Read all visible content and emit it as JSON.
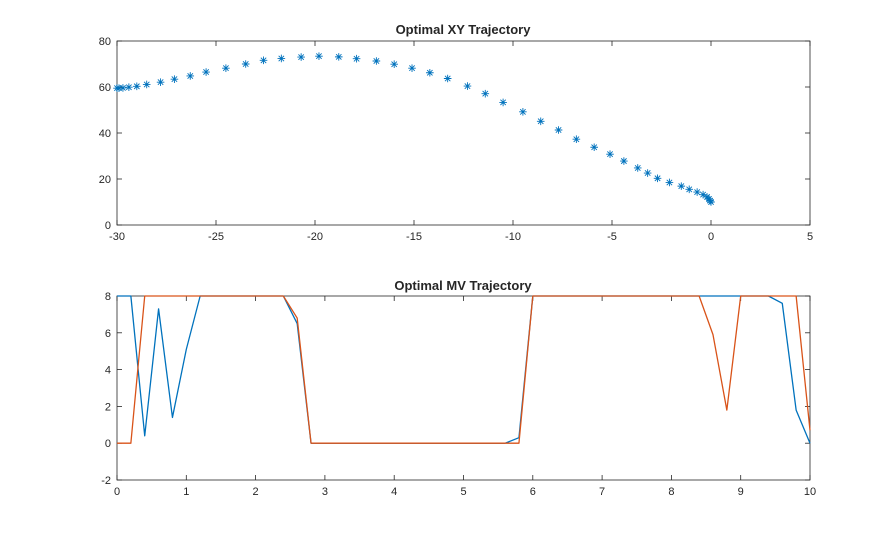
{
  "chart_data": [
    {
      "type": "scatter",
      "title": "Optimal XY Trajectory",
      "xlabel": "",
      "ylabel": "",
      "xlim": [
        -30,
        5
      ],
      "ylim": [
        0,
        80
      ],
      "xticks": [
        "-30",
        "-25",
        "-20",
        "-15",
        "-10",
        "-5",
        "0",
        "5"
      ],
      "yticks": [
        "0",
        "20",
        "40",
        "60",
        "80"
      ],
      "marker": "asterisk",
      "grid": false,
      "color": "#0072BD",
      "points": [
        [
          0.0,
          10.0
        ],
        [
          -0.05,
          10.6
        ],
        [
          -0.1,
          11.3
        ],
        [
          -0.2,
          12.2
        ],
        [
          -0.4,
          13.2
        ],
        [
          -0.7,
          14.3
        ],
        [
          -1.1,
          15.5
        ],
        [
          -1.5,
          16.9
        ],
        [
          -2.1,
          18.5
        ],
        [
          -2.7,
          20.3
        ],
        [
          -3.2,
          22.6
        ],
        [
          -3.7,
          24.8
        ],
        [
          -4.4,
          27.8
        ],
        [
          -5.1,
          30.8
        ],
        [
          -5.9,
          33.8
        ],
        [
          -6.8,
          37.3
        ],
        [
          -7.7,
          41.3
        ],
        [
          -8.6,
          45.1
        ],
        [
          -9.5,
          49.2
        ],
        [
          -10.5,
          53.3
        ],
        [
          -11.4,
          57.1
        ],
        [
          -12.3,
          60.4
        ],
        [
          -13.3,
          63.7
        ],
        [
          -14.2,
          66.2
        ],
        [
          -15.1,
          68.2
        ],
        [
          -16.0,
          69.9
        ],
        [
          -16.9,
          71.3
        ],
        [
          -17.9,
          72.3
        ],
        [
          -18.8,
          73.1
        ],
        [
          -19.8,
          73.4
        ],
        [
          -20.7,
          73.0
        ],
        [
          -21.7,
          72.4
        ],
        [
          -22.6,
          71.6
        ],
        [
          -23.5,
          70.0
        ],
        [
          -24.5,
          68.2
        ],
        [
          -25.5,
          66.5
        ],
        [
          -26.3,
          64.8
        ],
        [
          -27.1,
          63.4
        ],
        [
          -27.8,
          62.1
        ],
        [
          -28.5,
          61.1
        ],
        [
          -29.0,
          60.3
        ],
        [
          -29.4,
          59.9
        ],
        [
          -29.7,
          59.6
        ],
        [
          -29.9,
          59.5
        ],
        [
          -30.0,
          59.5
        ]
      ]
    },
    {
      "type": "line",
      "title": "Optimal MV Trajectory",
      "xlabel": "",
      "ylabel": "",
      "xlim": [
        0,
        10
      ],
      "ylim": [
        -2,
        8
      ],
      "xticks": [
        "0",
        "1",
        "2",
        "3",
        "4",
        "5",
        "6",
        "7",
        "8",
        "9",
        "10"
      ],
      "yticks": [
        "-2",
        "0",
        "2",
        "4",
        "6",
        "8"
      ],
      "grid": false,
      "series": [
        {
          "color": "#0072BD",
          "points": [
            [
              0,
              8
            ],
            [
              0.2,
              8
            ],
            [
              0.4,
              0.4
            ],
            [
              0.6,
              7.3
            ],
            [
              0.8,
              1.4
            ],
            [
              1.0,
              5.1
            ],
            [
              1.2,
              8
            ],
            [
              2.4,
              8
            ],
            [
              2.6,
              6.5
            ],
            [
              2.8,
              0
            ],
            [
              5.6,
              0
            ],
            [
              5.8,
              0.3
            ],
            [
              6.0,
              8
            ],
            [
              9.4,
              8
            ],
            [
              9.6,
              7.6
            ],
            [
              9.8,
              1.8
            ],
            [
              10,
              0
            ]
          ]
        },
        {
          "color": "#D95319",
          "points": [
            [
              0,
              0
            ],
            [
              0.2,
              0
            ],
            [
              0.4,
              8
            ],
            [
              2.4,
              8
            ],
            [
              2.6,
              6.8
            ],
            [
              2.8,
              0
            ],
            [
              5.8,
              0
            ],
            [
              6.0,
              8
            ],
            [
              8.4,
              8
            ],
            [
              8.6,
              5.9
            ],
            [
              8.8,
              1.8
            ],
            [
              9.0,
              8
            ],
            [
              9.8,
              8
            ],
            [
              10,
              0.7
            ]
          ]
        }
      ]
    }
  ]
}
